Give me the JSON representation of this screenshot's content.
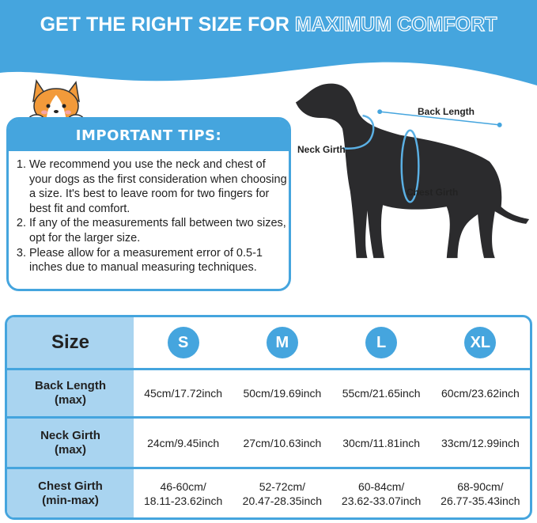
{
  "banner": {
    "title_part1": "GET THE RIGHT SIZE FOR",
    "title_part2": "MAXIMUM COMFORT",
    "color": "#45a5de"
  },
  "tips": {
    "heading": "IMPORTANT TIPS:",
    "items": [
      "We recommend you use the neck and chest of your dogs as the first consideration when choosing a size. It's best to leave room for two fingers for best fit and comfort.",
      "If any of the measurements fall between two sizes, opt for the larger size.",
      "Please allow for a measurement error of 0.5-1 inches due to manual measuring techniques."
    ]
  },
  "diagram": {
    "back_length": "Back Length",
    "neck_girth": "Neck Girth",
    "chest_girth": "Chest Girth"
  },
  "size_table": {
    "header": "Size",
    "sizes": [
      "S",
      "M",
      "L",
      "XL"
    ],
    "rows": [
      {
        "label": "Back Length",
        "sub": "(max)",
        "values": [
          "45cm/17.72inch",
          "50cm/19.69inch",
          "55cm/21.65inch",
          "60cm/23.62inch"
        ]
      },
      {
        "label": "Neck Girth",
        "sub": "(max)",
        "values": [
          "24cm/9.45inch",
          "27cm/10.63inch",
          "30cm/11.81inch",
          "33cm/12.99inch"
        ]
      },
      {
        "label": "Chest Girth",
        "sub": "(min-max)",
        "values_cm": [
          "46-60cm/",
          "52-72cm/",
          "60-84cm/",
          "68-90cm/"
        ],
        "values_in": [
          "18.11-23.62inch",
          "20.47-28.35inch",
          "23.62-33.07inch",
          "26.77-35.43inch"
        ]
      }
    ]
  },
  "colors": {
    "accent": "#45a5de",
    "label_column": "#a9d4f0"
  }
}
